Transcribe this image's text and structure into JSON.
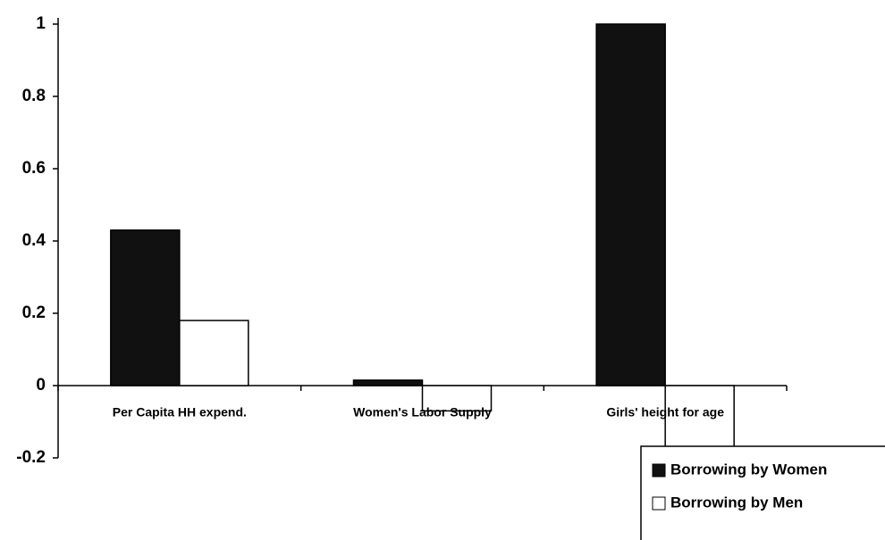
{
  "chart_data": {
    "type": "bar",
    "categories": [
      "Per Capita HH expend.",
      "Women's Labor Supply",
      "Girls' height for age"
    ],
    "series": [
      {
        "name": "Borrowing by Women",
        "color": "#111111",
        "values": [
          0.43,
          0.015,
          1
        ]
      },
      {
        "name": "Borrowing by Men",
        "color": "#ffffff",
        "values": [
          0.18,
          -0.07,
          -0.19
        ]
      }
    ],
    "ylim": [
      -0.2,
      1
    ],
    "yticks": [
      -0.2,
      0,
      0.2,
      0.4,
      0.6,
      0.8,
      1
    ],
    "legend": "lower right"
  }
}
